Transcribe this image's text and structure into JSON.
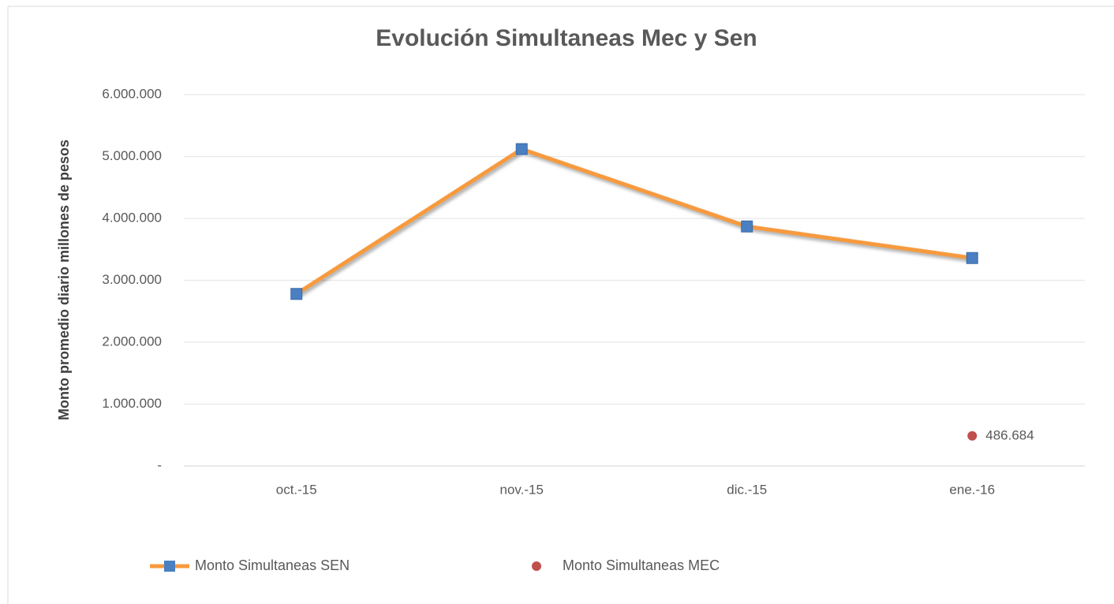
{
  "chart_data": {
    "type": "line",
    "title": "Evolución Simultaneas Mec y Sen",
    "y_axis_label": "Monto promedio diario millones de pesos",
    "categories": [
      "oct.-15",
      "nov.-15",
      "dic.-15",
      "ene.-16"
    ],
    "series": [
      {
        "name": "Monto Simultaneas SEN",
        "color": "#f79a3e",
        "marker_color": "#4a7fc1",
        "values": [
          2780000,
          5120000,
          3870000,
          3360000
        ]
      },
      {
        "name": "Monto Simultaneas MEC",
        "color": "#c0504d",
        "values": [
          null,
          null,
          null,
          486684
        ],
        "value_labels": [
          null,
          null,
          null,
          "486.684"
        ]
      }
    ],
    "ylim": [
      0,
      6000000
    ],
    "yticks": [
      {
        "value": 0,
        "label": "-"
      },
      {
        "value": 1000000,
        "label": "1.000.000"
      },
      {
        "value": 2000000,
        "label": "2.000.000"
      },
      {
        "value": 3000000,
        "label": "3.000.000"
      },
      {
        "value": 4000000,
        "label": "4.000.000"
      },
      {
        "value": 5000000,
        "label": "5.000.000"
      },
      {
        "value": 6000000,
        "label": "6.000.000"
      }
    ],
    "grid": true,
    "legend": "bottom"
  }
}
